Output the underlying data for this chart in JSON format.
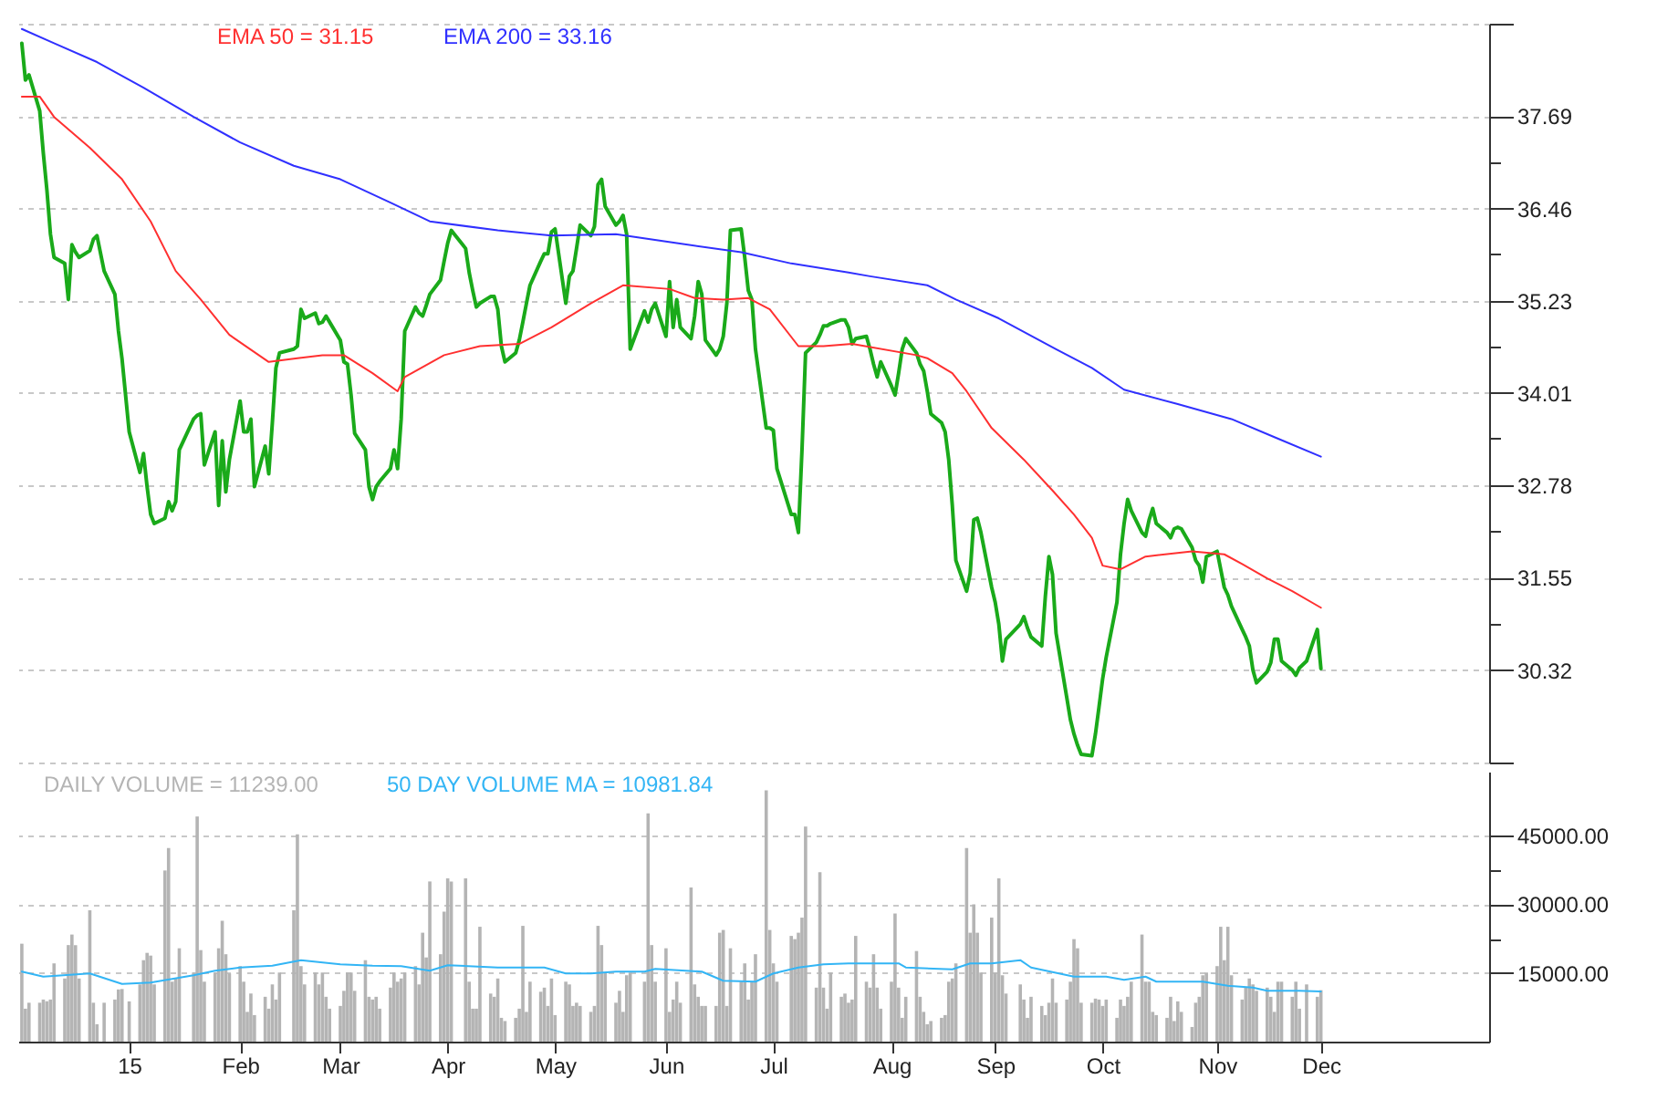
{
  "chart_data": [
    {
      "type": "line",
      "legend": "top left",
      "grid": "y",
      "tick_labels": "y",
      "xlim": [
        "2014-12-02",
        "2016-01-17"
      ],
      "ylim": [
        29.09,
        38.92
      ],
      "yticks": [
        {
          "value": 29.09,
          "label": null
        },
        30.32,
        {
          "value": 30.94,
          "label": null
        },
        31.55,
        {
          "value": 32.17,
          "label": null
        },
        32.78,
        {
          "value": 33.4,
          "label": null
        },
        34.01,
        {
          "value": 34.62,
          "label": null
        },
        35.23,
        {
          "value": 35.85,
          "label": null
        },
        36.46,
        {
          "value": 37.08,
          "label": null
        },
        37.69,
        {
          "value": 38.92,
          "label": null
        }
      ],
      "x": [
        "2014-12-03",
        "2014-12-04",
        "2014-12-05",
        "2014-12-08",
        "2014-12-09",
        "2014-12-10",
        "2014-12-11",
        "2014-12-12",
        "2014-12-15",
        "2014-12-16",
        "2014-12-17",
        "2014-12-18",
        "2014-12-19",
        "2014-12-22",
        "2014-12-23",
        "2014-12-24",
        "2014-12-26",
        "2014-12-29",
        "2014-12-30",
        "2014-12-31",
        "2015-01-02",
        "2015-01-05",
        "2015-01-06",
        "2015-01-07",
        "2015-01-08",
        "2015-01-09",
        "2015-01-12",
        "2015-01-13",
        "2015-01-14",
        "2015-01-15",
        "2015-01-16",
        "2015-01-20",
        "2015-01-21",
        "2015-01-22",
        "2015-01-23",
        "2015-01-26",
        "2015-01-27",
        "2015-01-28",
        "2015-01-29",
        "2015-01-30",
        "2015-02-02",
        "2015-02-03",
        "2015-02-04",
        "2015-02-05",
        "2015-02-06",
        "2015-02-09",
        "2015-02-10",
        "2015-02-11",
        "2015-02-12",
        "2015-02-13",
        "2015-02-17",
        "2015-02-18",
        "2015-02-19",
        "2015-02-20",
        "2015-02-23",
        "2015-02-24",
        "2015-02-25",
        "2015-02-26",
        "2015-02-27",
        "2015-03-02",
        "2015-03-03",
        "2015-03-04",
        "2015-03-05",
        "2015-03-06",
        "2015-03-09",
        "2015-03-10",
        "2015-03-11",
        "2015-03-12",
        "2015-03-13",
        "2015-03-16",
        "2015-03-17",
        "2015-03-18",
        "2015-03-19",
        "2015-03-20",
        "2015-03-23",
        "2015-03-24",
        "2015-03-25",
        "2015-03-26",
        "2015-03-27",
        "2015-03-30",
        "2015-03-31",
        "2015-04-01",
        "2015-04-02",
        "2015-04-06",
        "2015-04-07",
        "2015-04-08",
        "2015-04-09",
        "2015-04-10",
        "2015-04-13",
        "2015-04-14",
        "2015-04-15",
        "2015-04-16",
        "2015-04-17",
        "2015-04-20",
        "2015-04-21",
        "2015-04-22",
        "2015-04-23",
        "2015-04-24",
        "2015-04-27",
        "2015-04-28",
        "2015-04-29",
        "2015-04-30",
        "2015-05-01",
        "2015-05-04",
        "2015-05-05",
        "2015-05-06",
        "2015-05-07",
        "2015-05-08",
        "2015-05-11",
        "2015-05-12",
        "2015-05-13",
        "2015-05-14",
        "2015-05-15",
        "2015-05-18",
        "2015-05-19",
        "2015-05-20",
        "2015-05-21",
        "2015-05-22",
        "2015-05-26",
        "2015-05-27",
        "2015-05-28",
        "2015-05-29",
        "2015-06-01",
        "2015-06-02",
        "2015-06-03",
        "2015-06-04",
        "2015-06-05",
        "2015-06-08",
        "2015-06-09",
        "2015-06-10",
        "2015-06-11",
        "2015-06-12",
        "2015-06-15",
        "2015-06-16",
        "2015-06-17",
        "2015-06-18",
        "2015-06-19",
        "2015-06-22",
        "2015-06-23",
        "2015-06-24",
        "2015-06-25",
        "2015-06-26",
        "2015-06-29",
        "2015-06-30",
        "2015-07-01",
        "2015-07-02",
        "2015-07-06",
        "2015-07-07",
        "2015-07-08",
        "2015-07-09",
        "2015-07-10",
        "2015-07-13",
        "2015-07-14",
        "2015-07-15",
        "2015-07-16",
        "2015-07-17",
        "2015-07-20",
        "2015-07-21",
        "2015-07-22",
        "2015-07-23",
        "2015-07-24",
        "2015-07-27",
        "2015-07-28",
        "2015-07-29",
        "2015-07-30",
        "2015-07-31",
        "2015-08-03",
        "2015-08-04",
        "2015-08-05",
        "2015-08-06",
        "2015-08-07",
        "2015-08-10",
        "2015-08-11",
        "2015-08-12",
        "2015-08-13",
        "2015-08-14",
        "2015-08-17",
        "2015-08-18",
        "2015-08-19",
        "2015-08-20",
        "2015-08-21",
        "2015-08-24",
        "2015-08-25",
        "2015-08-26",
        "2015-08-27",
        "2015-08-28",
        "2015-08-31",
        "2015-09-01",
        "2015-09-02",
        "2015-09-03",
        "2015-09-04",
        "2015-09-08",
        "2015-09-09",
        "2015-09-10",
        "2015-09-11",
        "2015-09-14",
        "2015-09-15",
        "2015-09-16",
        "2015-09-17",
        "2015-09-18",
        "2015-09-21",
        "2015-09-22",
        "2015-09-23",
        "2015-09-24",
        "2015-09-25",
        "2015-09-28",
        "2015-09-29",
        "2015-09-30",
        "2015-10-01",
        "2015-10-02",
        "2015-10-05",
        "2015-10-06",
        "2015-10-07",
        "2015-10-08",
        "2015-10-09",
        "2015-10-12",
        "2015-10-13",
        "2015-10-14",
        "2015-10-15",
        "2015-10-16",
        "2015-10-19",
        "2015-10-20",
        "2015-10-21",
        "2015-10-22",
        "2015-10-23",
        "2015-10-26",
        "2015-10-27",
        "2015-10-28",
        "2015-10-29",
        "2015-10-30",
        "2015-11-02",
        "2015-11-03",
        "2015-11-04",
        "2015-11-05",
        "2015-11-06",
        "2015-11-09",
        "2015-11-10",
        "2015-11-11",
        "2015-11-12",
        "2015-11-13",
        "2015-11-16",
        "2015-11-17",
        "2015-11-18",
        "2015-11-19",
        "2015-11-20",
        "2015-11-23",
        "2015-11-24",
        "2015-11-25",
        "2015-11-27",
        "2015-11-30",
        "2015-12-01"
      ],
      "series": [
        {
          "color": "#1aaa1a",
          "values": [
            38.66,
            38.17,
            38.24,
            37.76,
            37.2,
            36.71,
            36.12,
            35.81,
            35.73,
            35.25,
            35.98,
            35.88,
            35.81,
            35.9,
            36.05,
            36.1,
            35.63,
            35.32,
            34.83,
            34.46,
            33.49,
            32.95,
            33.2,
            32.76,
            32.39,
            32.27,
            32.34,
            32.56,
            32.44,
            32.56,
            33.25,
            33.66,
            33.71,
            33.73,
            33.05,
            33.49,
            32.51,
            33.37,
            32.69,
            33.12,
            33.9,
            33.49,
            33.49,
            33.66,
            32.76,
            33.3,
            32.93,
            33.61,
            34.34,
            34.54,
            34.59,
            34.63,
            35.12,
            35.0,
            35.07,
            34.93,
            34.95,
            35.03,
            34.95,
            34.71,
            34.42,
            34.39,
            33.98,
            33.47,
            33.25,
            32.76,
            32.59,
            32.76,
            32.83,
            33.0,
            33.25,
            33.0,
            33.66,
            34.83,
            35.15,
            35.07,
            35.03,
            35.17,
            35.32,
            35.51,
            35.76,
            36.0,
            36.17,
            35.93,
            35.61,
            35.37,
            35.15,
            35.2,
            35.29,
            35.29,
            35.12,
            34.63,
            34.42,
            34.54,
            34.71,
            34.95,
            35.2,
            35.44,
            35.76,
            35.86,
            35.86,
            36.15,
            36.19,
            35.2,
            35.56,
            35.63,
            35.93,
            36.24,
            36.1,
            36.22,
            36.78,
            36.85,
            36.49,
            36.24,
            36.29,
            36.37,
            36.12,
            34.59,
            35.1,
            34.95,
            35.12,
            35.2,
            34.76,
            35.49,
            34.88,
            35.25,
            34.88,
            34.73,
            35.03,
            35.49,
            35.32,
            34.71,
            34.51,
            34.59,
            34.76,
            35.2,
            36.17,
            36.19,
            35.81,
            35.37,
            35.25,
            34.59,
            33.54,
            33.54,
            33.51,
            33.0,
            32.39,
            32.39,
            32.15,
            33.25,
            34.54,
            34.68,
            34.78,
            34.9,
            34.9,
            34.93,
            34.98,
            34.98,
            34.88,
            34.66,
            34.73,
            34.76,
            34.59,
            34.39,
            34.22,
            34.42,
            34.1,
            33.98,
            34.27,
            34.59,
            34.73,
            34.54,
            34.39,
            34.3,
            34.03,
            33.73,
            33.61,
            33.49,
            33.12,
            32.51,
            31.78,
            31.37,
            31.61,
            32.32,
            32.34,
            32.15,
            31.42,
            31.22,
            30.93,
            30.44,
            30.73,
            30.93,
            31.03,
            30.88,
            30.76,
            30.64,
            31.3,
            31.83,
            31.59,
            30.81,
            29.95,
            29.66,
            29.47,
            29.32,
            29.2,
            29.18,
            29.47,
            29.83,
            30.2,
            30.49,
            31.22,
            31.86,
            32.27,
            32.59,
            32.44,
            32.15,
            32.1,
            32.32,
            32.47,
            32.27,
            32.15,
            32.08,
            32.2,
            32.22,
            32.2,
            31.95,
            31.78,
            31.71,
            31.49,
            31.83,
            31.9,
            31.66,
            31.42,
            31.32,
            31.17,
            30.86,
            30.76,
            30.64,
            30.32,
            30.15,
            30.3,
            30.42,
            30.73,
            30.73,
            30.44,
            30.32,
            30.25,
            30.35,
            30.44,
            30.86,
            30.34
          ]
        },
        {
          "name": "EMA 50 = 31.15",
          "color": "#ff3030",
          "x": [
            "2014-12-03",
            "2014-12-08",
            "2014-12-12",
            "2014-12-22",
            "2014-12-31",
            "2015-01-08",
            "2015-01-15",
            "2015-01-22",
            "2015-01-30",
            "2015-02-10",
            "2015-02-18",
            "2015-02-25",
            "2015-03-03",
            "2015-03-11",
            "2015-03-18",
            "2015-03-20",
            "2015-03-31",
            "2015-04-10",
            "2015-04-21",
            "2015-04-30",
            "2015-05-11",
            "2015-05-20",
            "2015-06-02",
            "2015-06-09",
            "2015-06-17",
            "2015-06-24",
            "2015-06-30",
            "2015-07-08",
            "2015-07-15",
            "2015-07-23",
            "2015-08-10",
            "2015-08-13",
            "2015-08-20",
            "2015-08-24",
            "2015-08-31",
            "2015-09-09",
            "2015-09-17",
            "2015-09-23",
            "2015-09-28",
            "2015-10-01",
            "2015-10-06",
            "2015-10-13",
            "2015-10-26",
            "2015-11-04",
            "2015-11-09",
            "2015-11-16",
            "2015-11-23",
            "2015-12-01"
          ],
          "values": [
            37.95,
            37.95,
            37.68,
            37.27,
            36.85,
            36.29,
            35.63,
            35.25,
            34.78,
            34.42,
            34.47,
            34.51,
            34.51,
            34.27,
            34.03,
            34.22,
            34.51,
            34.63,
            34.66,
            34.88,
            35.2,
            35.44,
            35.39,
            35.27,
            35.25,
            35.27,
            35.12,
            34.63,
            34.63,
            34.66,
            34.51,
            34.47,
            34.27,
            34.03,
            33.54,
            33.12,
            32.71,
            32.39,
            32.08,
            31.71,
            31.66,
            31.83,
            31.9,
            31.86,
            31.73,
            31.54,
            31.37,
            31.15
          ]
        },
        {
          "name": "EMA 200 = 33.16",
          "color": "#3030ff",
          "x": [
            "2014-12-03",
            "2014-12-12",
            "2014-12-24",
            "2015-01-06",
            "2015-01-20",
            "2015-02-02",
            "2015-02-17",
            "2015-03-02",
            "2015-03-16",
            "2015-03-27",
            "2015-04-15",
            "2015-04-30",
            "2015-05-18",
            "2015-06-04",
            "2015-06-22",
            "2015-07-06",
            "2015-07-22",
            "2015-07-28",
            "2015-08-13",
            "2015-08-21",
            "2015-09-02",
            "2015-09-18",
            "2015-09-28",
            "2015-10-07",
            "2015-10-22",
            "2015-11-06",
            "2015-11-18",
            "2015-12-01"
          ],
          "values": [
            38.85,
            38.66,
            38.41,
            38.07,
            37.68,
            37.34,
            37.03,
            36.85,
            36.54,
            36.29,
            36.17,
            36.1,
            36.12,
            36.0,
            35.88,
            35.73,
            35.61,
            35.56,
            35.44,
            35.25,
            35.0,
            34.59,
            34.34,
            34.05,
            33.86,
            33.66,
            33.42,
            33.16
          ]
        }
      ]
    },
    {
      "type": "bar",
      "legend": "top left",
      "grid": "y",
      "xlim": [
        "2014-12-02",
        "2016-01-17"
      ],
      "ylim": [
        0,
        59000
      ],
      "xticks": [
        {
          "value": "2015-01-02",
          "label": "15"
        },
        {
          "value": "2015-02-02",
          "label": "Feb"
        },
        {
          "value": "2015-03-02",
          "label": "Mar"
        },
        {
          "value": "2015-04-01",
          "label": "Apr"
        },
        {
          "value": "2015-05-01",
          "label": "May"
        },
        {
          "value": "2015-06-01",
          "label": "Jun"
        },
        {
          "value": "2015-07-01",
          "label": "Jul"
        },
        {
          "value": "2015-08-03",
          "label": "Aug"
        },
        {
          "value": "2015-09-01",
          "label": "Sep"
        },
        {
          "value": "2015-10-01",
          "label": "Oct"
        },
        {
          "value": "2015-11-02",
          "label": "Nov"
        },
        {
          "value": "2015-12-01",
          "label": "Dec"
        }
      ],
      "yticks": [
        {
          "value": 15000,
          "label": "15000.00"
        },
        {
          "value": 22500,
          "label": null
        },
        {
          "value": 30000,
          "label": "30000.00"
        },
        {
          "value": 37500,
          "label": null
        },
        {
          "value": 45000,
          "label": "45000.00"
        }
      ],
      "x": [
        "2014-12-03",
        "2014-12-04",
        "2014-12-05",
        "2014-12-08",
        "2014-12-09",
        "2014-12-10",
        "2014-12-11",
        "2014-12-12",
        "2014-12-15",
        "2014-12-16",
        "2014-12-17",
        "2014-12-18",
        "2014-12-19",
        "2014-12-22",
        "2014-12-23",
        "2014-12-24",
        "2014-12-26",
        "2014-12-29",
        "2014-12-30",
        "2014-12-31",
        "2015-01-02",
        "2015-01-05",
        "2015-01-06",
        "2015-01-07",
        "2015-01-08",
        "2015-01-09",
        "2015-01-12",
        "2015-01-13",
        "2015-01-14",
        "2015-01-15",
        "2015-01-16",
        "2015-01-20",
        "2015-01-21",
        "2015-01-22",
        "2015-01-23",
        "2015-01-26",
        "2015-01-27",
        "2015-01-28",
        "2015-01-29",
        "2015-01-30",
        "2015-02-02",
        "2015-02-03",
        "2015-02-04",
        "2015-02-05",
        "2015-02-06",
        "2015-02-09",
        "2015-02-10",
        "2015-02-11",
        "2015-02-12",
        "2015-02-13",
        "2015-02-17",
        "2015-02-18",
        "2015-02-19",
        "2015-02-20",
        "2015-02-23",
        "2015-02-24",
        "2015-02-25",
        "2015-02-26",
        "2015-02-27",
        "2015-03-02",
        "2015-03-03",
        "2015-03-04",
        "2015-03-05",
        "2015-03-06",
        "2015-03-09",
        "2015-03-10",
        "2015-03-11",
        "2015-03-12",
        "2015-03-13",
        "2015-03-16",
        "2015-03-17",
        "2015-03-18",
        "2015-03-19",
        "2015-03-20",
        "2015-03-23",
        "2015-03-24",
        "2015-03-25",
        "2015-03-26",
        "2015-03-27",
        "2015-03-30",
        "2015-03-31",
        "2015-04-01",
        "2015-04-02",
        "2015-04-06",
        "2015-04-07",
        "2015-04-08",
        "2015-04-09",
        "2015-04-10",
        "2015-04-13",
        "2015-04-14",
        "2015-04-15",
        "2015-04-16",
        "2015-04-17",
        "2015-04-20",
        "2015-04-21",
        "2015-04-22",
        "2015-04-23",
        "2015-04-24",
        "2015-04-27",
        "2015-04-28",
        "2015-04-29",
        "2015-04-30",
        "2015-05-01",
        "2015-05-04",
        "2015-05-05",
        "2015-05-06",
        "2015-05-07",
        "2015-05-08",
        "2015-05-11",
        "2015-05-12",
        "2015-05-13",
        "2015-05-14",
        "2015-05-15",
        "2015-05-18",
        "2015-05-19",
        "2015-05-20",
        "2015-05-21",
        "2015-05-22",
        "2015-05-26",
        "2015-05-27",
        "2015-05-28",
        "2015-05-29",
        "2015-06-01",
        "2015-06-02",
        "2015-06-03",
        "2015-06-04",
        "2015-06-05",
        "2015-06-08",
        "2015-06-09",
        "2015-06-10",
        "2015-06-11",
        "2015-06-12",
        "2015-06-15",
        "2015-06-16",
        "2015-06-17",
        "2015-06-18",
        "2015-06-19",
        "2015-06-22",
        "2015-06-23",
        "2015-06-24",
        "2015-06-25",
        "2015-06-26",
        "2015-06-29",
        "2015-06-30",
        "2015-07-01",
        "2015-07-02",
        "2015-07-06",
        "2015-07-07",
        "2015-07-08",
        "2015-07-09",
        "2015-07-10",
        "2015-07-13",
        "2015-07-14",
        "2015-07-15",
        "2015-07-16",
        "2015-07-17",
        "2015-07-20",
        "2015-07-21",
        "2015-07-22",
        "2015-07-23",
        "2015-07-24",
        "2015-07-27",
        "2015-07-28",
        "2015-07-29",
        "2015-07-30",
        "2015-07-31",
        "2015-08-03",
        "2015-08-04",
        "2015-08-05",
        "2015-08-06",
        "2015-08-07",
        "2015-08-10",
        "2015-08-11",
        "2015-08-12",
        "2015-08-13",
        "2015-08-14",
        "2015-08-17",
        "2015-08-18",
        "2015-08-19",
        "2015-08-20",
        "2015-08-21",
        "2015-08-24",
        "2015-08-25",
        "2015-08-26",
        "2015-08-27",
        "2015-08-28",
        "2015-08-31",
        "2015-09-01",
        "2015-09-02",
        "2015-09-03",
        "2015-09-04",
        "2015-09-08",
        "2015-09-09",
        "2015-09-10",
        "2015-09-11",
        "2015-09-14",
        "2015-09-15",
        "2015-09-16",
        "2015-09-17",
        "2015-09-18",
        "2015-09-21",
        "2015-09-22",
        "2015-09-23",
        "2015-09-24",
        "2015-09-25",
        "2015-09-28",
        "2015-09-29",
        "2015-09-30",
        "2015-10-01",
        "2015-10-02",
        "2015-10-05",
        "2015-10-06",
        "2015-10-07",
        "2015-10-08",
        "2015-10-09",
        "2015-10-12",
        "2015-10-13",
        "2015-10-14",
        "2015-10-15",
        "2015-10-16",
        "2015-10-19",
        "2015-10-20",
        "2015-10-21",
        "2015-10-22",
        "2015-10-23",
        "2015-10-26",
        "2015-10-27",
        "2015-10-28",
        "2015-10-29",
        "2015-10-30",
        "2015-11-02",
        "2015-11-03",
        "2015-11-04",
        "2015-11-05",
        "2015-11-06",
        "2015-11-09",
        "2015-11-10",
        "2015-11-11",
        "2015-11-12",
        "2015-11-13",
        "2015-11-16",
        "2015-11-17",
        "2015-11-18",
        "2015-11-19",
        "2015-11-20",
        "2015-11-23",
        "2015-11-24",
        "2015-11-25",
        "2015-11-27",
        "2015-11-30",
        "2015-12-01"
      ],
      "series": [
        {
          "name": "DAILY VOLUME = 11239.00",
          "color": "#b4b4b4",
          "values": [
            21400,
            7200,
            8500,
            8500,
            9200,
            8800,
            9200,
            17100,
            13800,
            21100,
            23400,
            21100,
            13800,
            28700,
            8500,
            3800,
            8500,
            9200,
            11400,
            11500,
            8800,
            12500,
            17800,
            19400,
            18800,
            12500,
            37400,
            42300,
            13100,
            13800,
            20400,
            15100,
            49200,
            20000,
            13100,
            15100,
            20400,
            26400,
            19100,
            14900,
            16500,
            13100,
            6500,
            10500,
            5800,
            9800,
            7200,
            12500,
            9200,
            15100,
            28700,
            45300,
            16500,
            12500,
            15100,
            12500,
            15100,
            9800,
            7200,
            7800,
            11100,
            15100,
            15100,
            11100,
            17800,
            9800,
            9200,
            9800,
            7200,
            11800,
            15100,
            13100,
            13800,
            15100,
            16500,
            12500,
            23800,
            18400,
            35000,
            19100,
            28400,
            35700,
            35000,
            35700,
            13100,
            7200,
            7200,
            25100,
            10500,
            9800,
            13800,
            5200,
            4500,
            5200,
            7200,
            25300,
            6500,
            13100,
            10900,
            11800,
            7800,
            13800,
            5800,
            13100,
            12500,
            7800,
            8500,
            7800,
            6500,
            7800,
            25300,
            21100,
            15100,
            8500,
            11100,
            6500,
            14500,
            15100,
            13100,
            49900,
            21100,
            13100,
            20400,
            6500,
            9200,
            13100,
            8500,
            33700,
            12500,
            9800,
            7800,
            7800,
            7800,
            23800,
            24400,
            7800,
            20400,
            13100,
            17100,
            9200,
            13100,
            19100,
            54900,
            24400,
            17100,
            13100,
            23100,
            22400,
            23800,
            27100,
            47000,
            11800,
            37000,
            11800,
            7200,
            15100,
            9800,
            10500,
            8500,
            9200,
            23100,
            13100,
            11800,
            19100,
            11800,
            7200,
            13100,
            28000,
            11800,
            5200,
            9800,
            19800,
            9800,
            6500,
            3800,
            4500,
            5200,
            5800,
            13100,
            13800,
            17100,
            42300,
            23800,
            30000,
            23800,
            15100,
            27100,
            15100,
            35700,
            14500,
            10500,
            12500,
            9200,
            5200,
            9800,
            7800,
            5800,
            8500,
            13800,
            8500,
            9200,
            13100,
            22400,
            20400,
            8500,
            8500,
            9400,
            9200,
            7800,
            9200,
            5200,
            9200,
            7800,
            9800,
            13100,
            23400,
            13100,
            13100,
            6500,
            5800,
            5200,
            9800,
            4500,
            8800,
            6500,
            3200,
            8500,
            9800,
            14500,
            15100,
            16500,
            25100,
            17800,
            25100,
            14500,
            9200,
            11800,
            13800,
            12500,
            11100,
            11800,
            9800,
            6500,
            13100,
            13100,
            9800,
            13100,
            7200,
            12500,
            9800,
            11239
          ]
        },
        {
          "type": "line",
          "name": "50 DAY VOLUME MA = 10981.84",
          "color": "#33b5f5",
          "x": [
            "2014-12-03",
            "2014-12-09",
            "2014-12-22",
            "2014-12-31",
            "2015-01-08",
            "2015-01-20",
            "2015-01-26",
            "2015-02-02",
            "2015-02-11",
            "2015-02-19",
            "2015-03-02",
            "2015-03-11",
            "2015-03-19",
            "2015-03-27",
            "2015-04-01",
            "2015-04-15",
            "2015-04-28",
            "2015-05-04",
            "2015-05-11",
            "2015-05-18",
            "2015-05-26",
            "2015-05-29",
            "2015-06-11",
            "2015-06-17",
            "2015-06-26",
            "2015-07-01",
            "2015-07-08",
            "2015-07-15",
            "2015-07-22",
            "2015-08-05",
            "2015-08-07",
            "2015-08-20",
            "2015-08-25",
            "2015-08-31",
            "2015-09-08",
            "2015-09-11",
            "2015-09-23",
            "2015-10-02",
            "2015-10-07",
            "2015-10-13",
            "2015-10-16",
            "2015-10-29",
            "2015-11-05",
            "2015-11-12",
            "2015-11-16",
            "2015-11-25",
            "2015-12-01"
          ],
          "values": [
            15300,
            14200,
            14900,
            12600,
            12900,
            14500,
            15500,
            16200,
            16600,
            17800,
            16900,
            16600,
            16500,
            15500,
            16700,
            16200,
            16200,
            14900,
            14900,
            15300,
            15300,
            15900,
            15300,
            13300,
            13100,
            14900,
            16200,
            16900,
            17100,
            17100,
            16200,
            15800,
            17100,
            17100,
            17800,
            16200,
            14200,
            14200,
            13500,
            14200,
            13100,
            13100,
            12200,
            11800,
            11100,
            11100,
            10981.84
          ]
        }
      ]
    }
  ]
}
